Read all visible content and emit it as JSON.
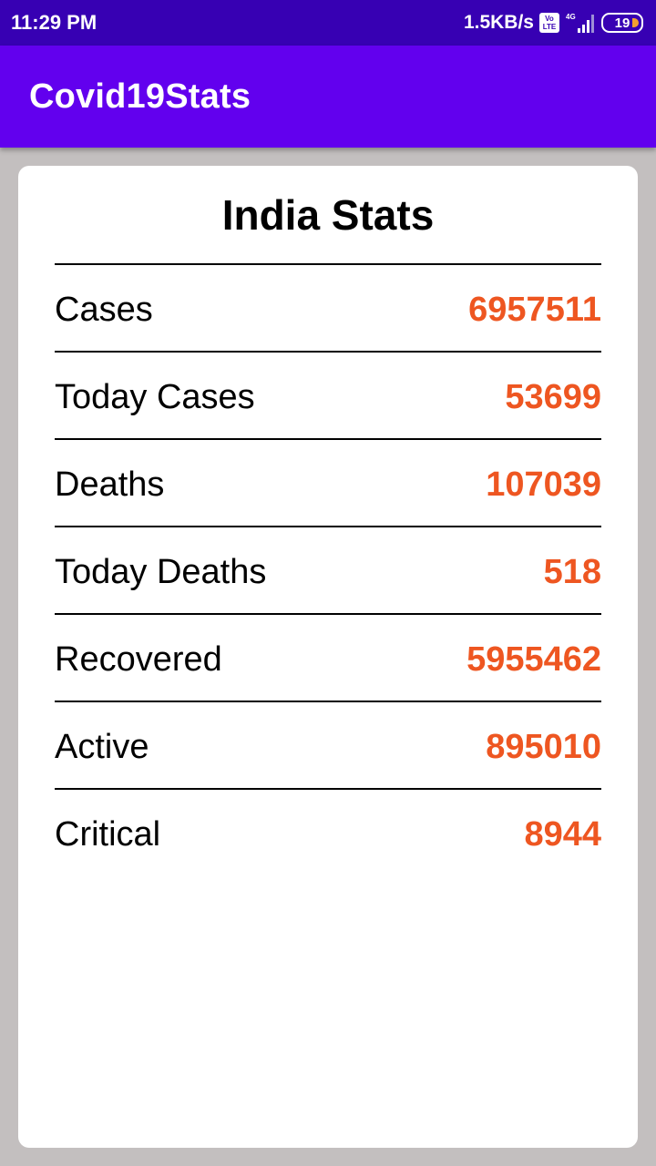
{
  "status_bar": {
    "time": "11:29 PM",
    "speed": "1.5KB/s",
    "volte_top": "Vo",
    "volte_bottom": "LTE",
    "network": "4G",
    "battery": "19"
  },
  "app_bar": {
    "title": "Covid19Stats"
  },
  "card": {
    "title": "India Stats",
    "stats": [
      {
        "label": "Cases",
        "value": "6957511"
      },
      {
        "label": "Today Cases",
        "value": "53699"
      },
      {
        "label": "Deaths",
        "value": "107039"
      },
      {
        "label": "Today Deaths",
        "value": "518"
      },
      {
        "label": "Recovered",
        "value": "5955462"
      },
      {
        "label": "Active",
        "value": "895010"
      },
      {
        "label": "Critical",
        "value": "8944"
      }
    ]
  },
  "colors": {
    "status_bar": "#3700b3",
    "app_bar": "#6200ee",
    "value_text": "#ee5621",
    "background": "#c3bfbf"
  }
}
